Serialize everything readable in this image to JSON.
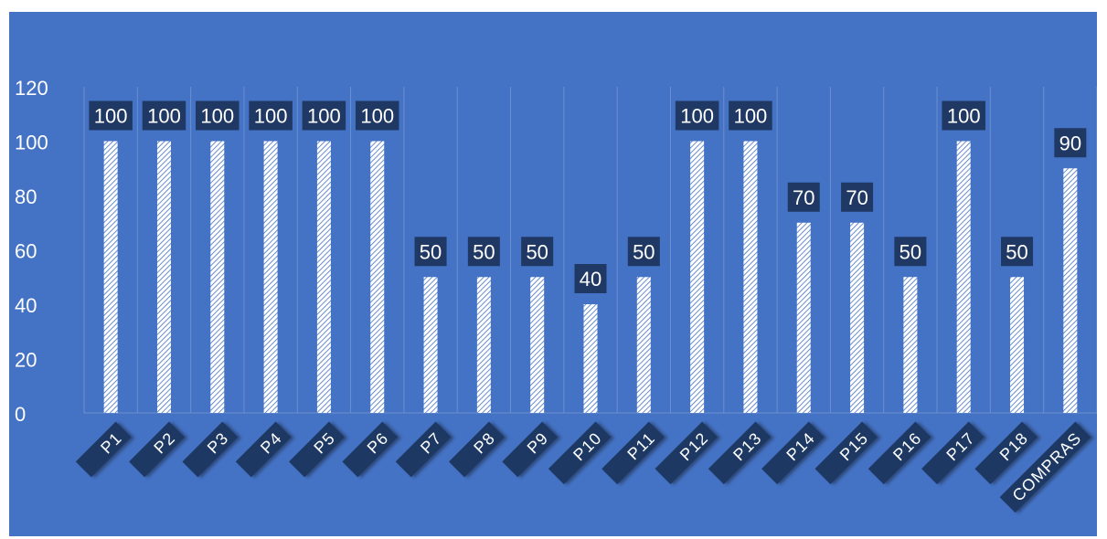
{
  "chart_data": {
    "type": "bar",
    "title": "",
    "xlabel": "",
    "ylabel": "",
    "ylim": [
      0,
      120
    ],
    "yticks": [
      0,
      20,
      40,
      60,
      80,
      100,
      120
    ],
    "grid": "vertical category lines",
    "legend": "none",
    "categories": [
      "P1",
      "P2",
      "P3",
      "P4",
      "P5",
      "P6",
      "P7",
      "P8",
      "P9",
      "P10",
      "P11",
      "P12",
      "P13",
      "P14",
      "P15",
      "P16",
      "P17",
      "P18",
      "COMPRAS"
    ],
    "values": [
      100,
      100,
      100,
      100,
      100,
      100,
      50,
      50,
      50,
      40,
      50,
      100,
      100,
      70,
      70,
      50,
      100,
      50,
      90
    ],
    "colors": {
      "background": "#4472c4",
      "label_box": "#1f3864",
      "bar_fill": "#ffffff",
      "bar_hatch": "#4472c4",
      "text": "#ffffff"
    }
  }
}
